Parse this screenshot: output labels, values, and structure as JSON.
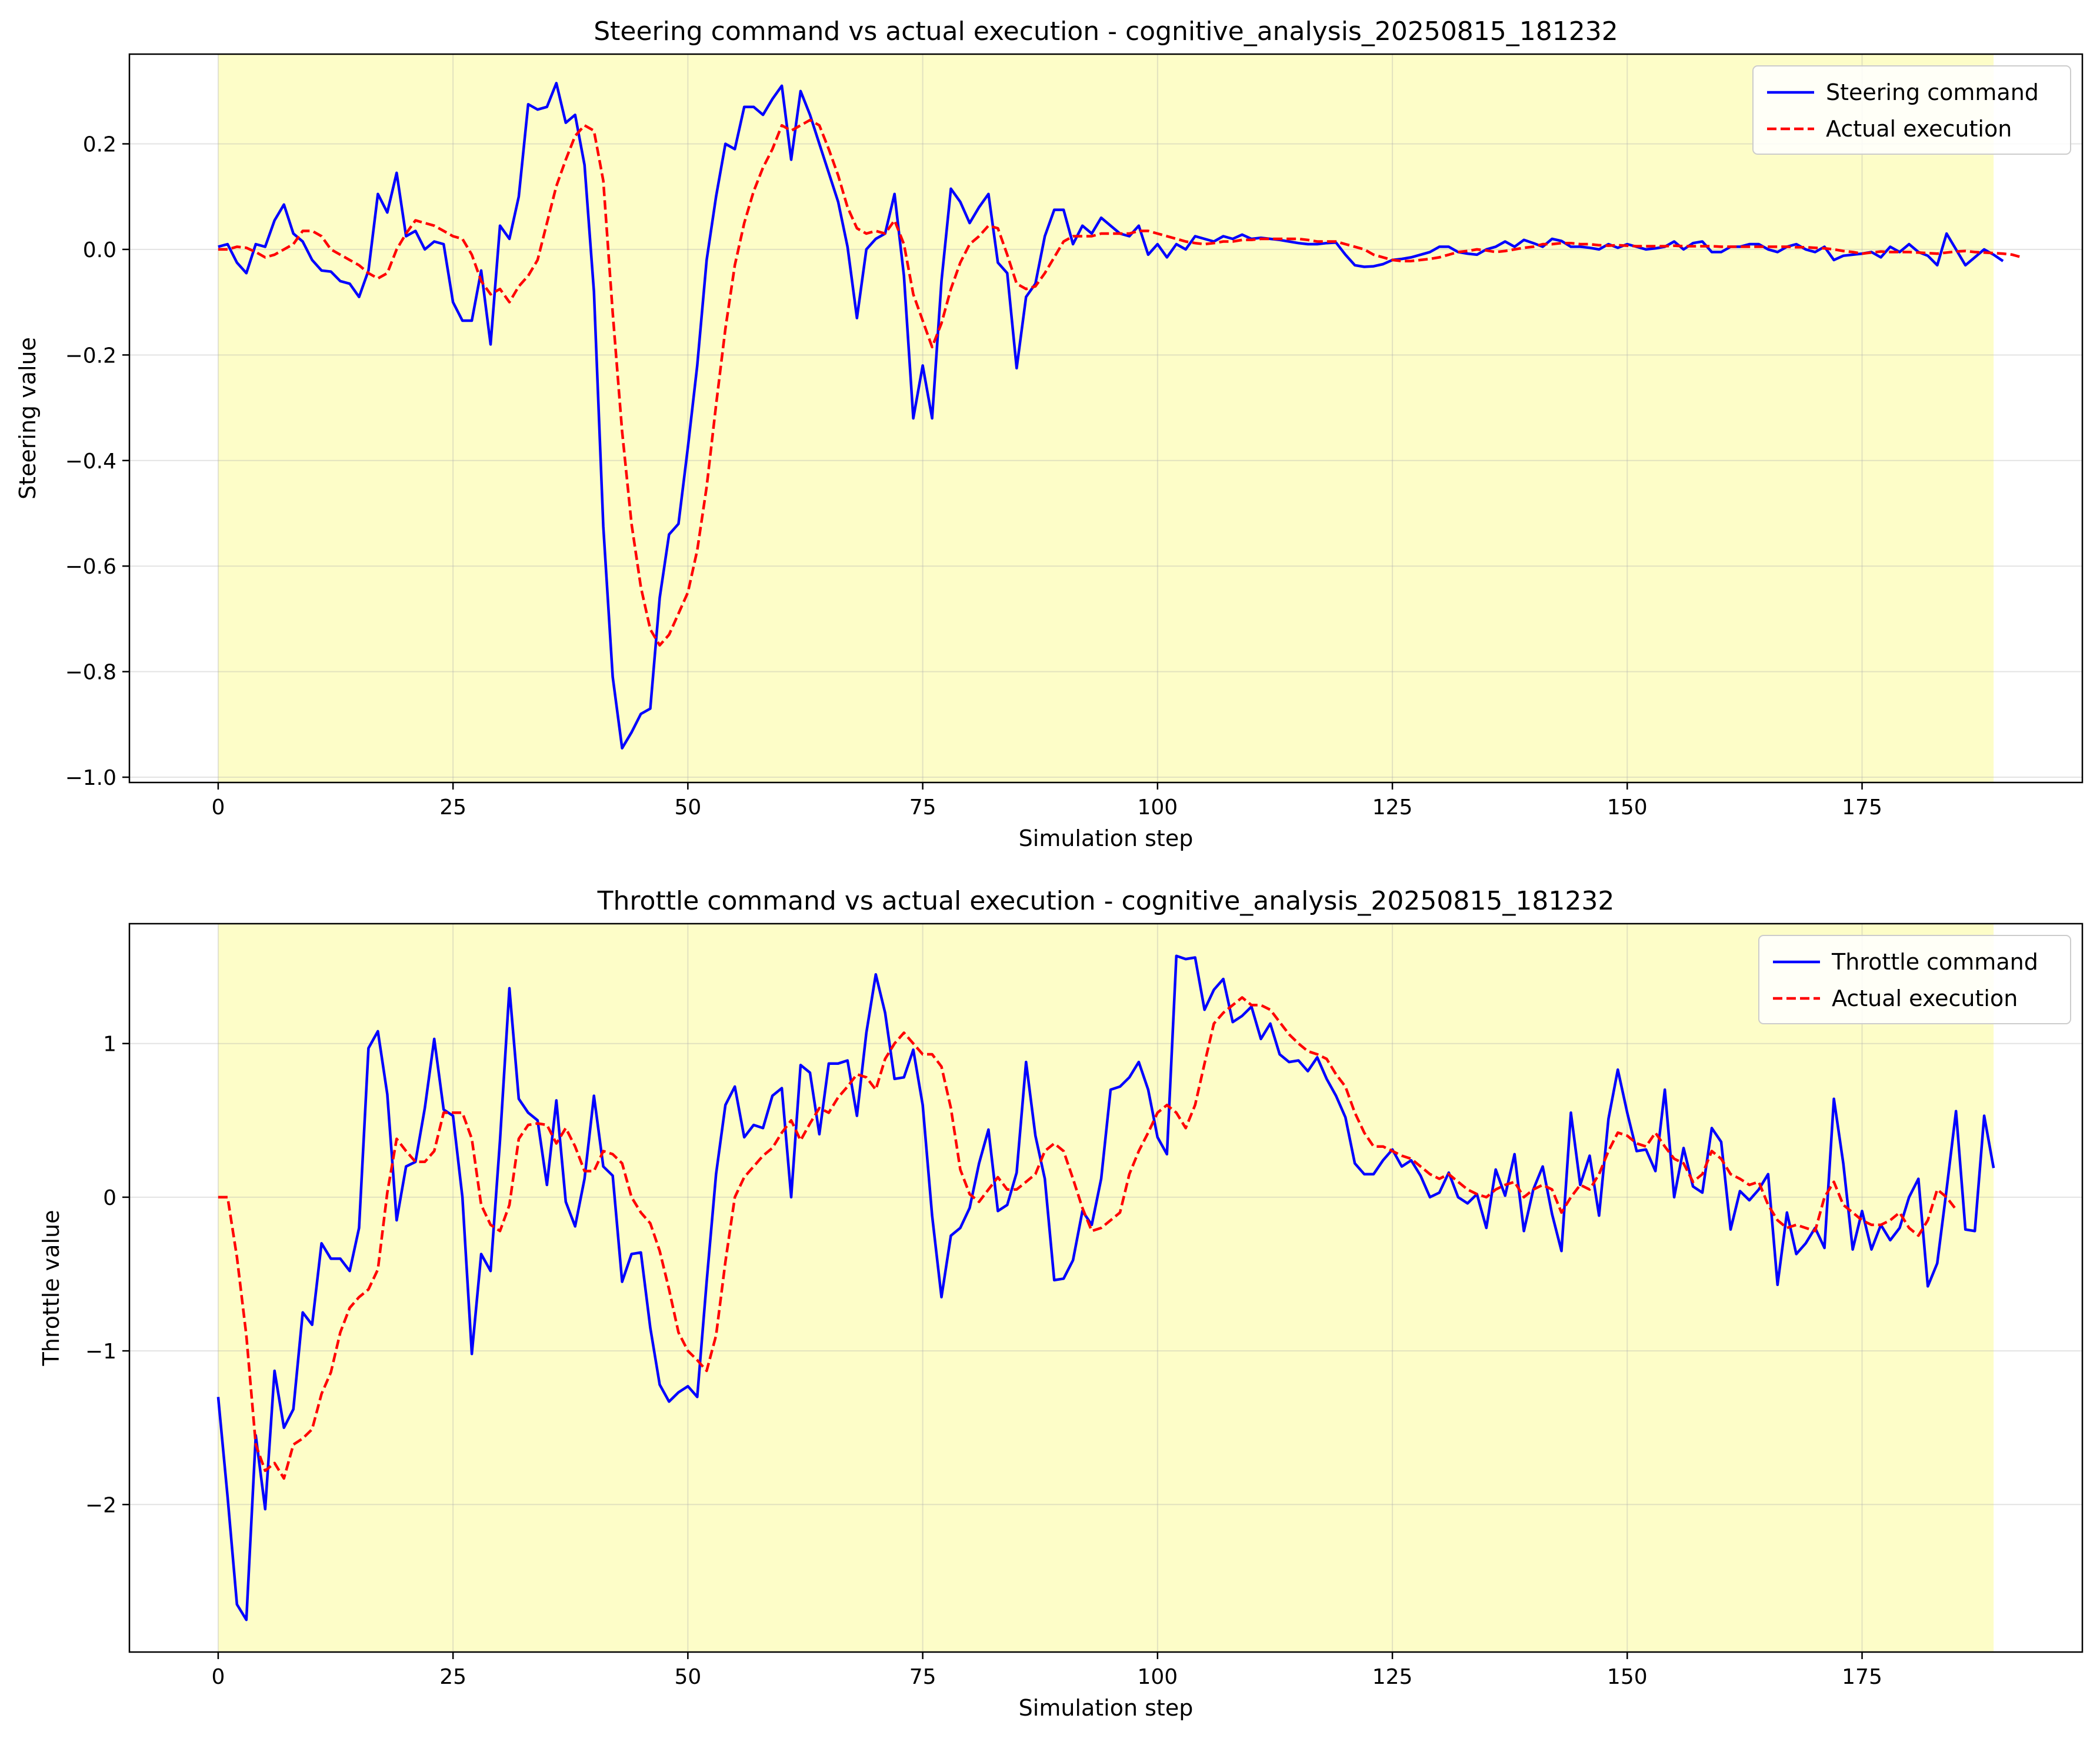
{
  "chart_data": [
    {
      "type": "line",
      "title": "Steering command vs actual execution - cognitive_analysis_20250815_181232",
      "xlabel": "Simulation step",
      "ylabel": "Steering value",
      "xlim": [
        -9.45,
        198.45
      ],
      "ylim": [
        -1.01,
        0.37
      ],
      "xticks": [
        0,
        25,
        50,
        75,
        100,
        125,
        150,
        175
      ],
      "yticks": [
        -1.0,
        -0.8,
        -0.6,
        -0.4,
        -0.2,
        0.0,
        0.2
      ],
      "ytick_labels": [
        "−1.0",
        "−0.8",
        "−0.6",
        "−0.4",
        "−0.2",
        "0.0",
        "0.2"
      ],
      "grid": true,
      "legend_position": "upper right",
      "highlight_span": {
        "x_start": 0,
        "x_end": 189,
        "color": "#fdfdc8"
      },
      "series": [
        {
          "name": "Steering command",
          "color": "#0000ff",
          "style": "solid",
          "x_start": 0,
          "values": [
            0.005,
            0.01,
            -0.025,
            -0.045,
            0.01,
            0.005,
            0.055,
            0.085,
            0.03,
            0.015,
            -0.02,
            -0.04,
            -0.042,
            -0.06,
            -0.065,
            -0.09,
            -0.04,
            0.105,
            0.07,
            0.145,
            0.025,
            0.035,
            0.0,
            0.015,
            0.01,
            -0.1,
            -0.135,
            -0.135,
            -0.04,
            -0.18,
            0.045,
            0.02,
            0.1,
            0.275,
            0.265,
            0.27,
            0.315,
            0.24,
            0.255,
            0.16,
            -0.08,
            -0.525,
            -0.81,
            -0.945,
            -0.915,
            -0.88,
            -0.87,
            -0.66,
            -0.54,
            -0.52,
            -0.375,
            -0.22,
            -0.02,
            0.1,
            0.2,
            0.19,
            0.27,
            0.27,
            0.255,
            0.285,
            0.31,
            0.17,
            0.3,
            0.255,
            0.2,
            0.145,
            0.09,
            0.005,
            -0.13,
            0.0,
            0.02,
            0.03,
            0.105,
            -0.05,
            -0.32,
            -0.22,
            -0.32,
            -0.06,
            0.115,
            0.09,
            0.05,
            0.08,
            0.105,
            -0.025,
            -0.045,
            -0.225,
            -0.09,
            -0.065,
            0.025,
            0.075,
            0.075,
            0.01,
            0.045,
            0.03,
            0.06,
            0.045,
            0.03,
            0.025,
            0.045,
            -0.01,
            0.01,
            -0.015,
            0.01,
            0.0,
            0.025,
            0.02,
            0.015,
            0.025,
            0.02,
            0.028,
            0.02,
            0.022,
            0.02,
            0.018,
            0.015,
            0.012,
            0.01,
            0.01,
            0.012,
            0.013,
            -0.01,
            -0.03,
            -0.033,
            -0.032,
            -0.028,
            -0.02,
            -0.018,
            -0.015,
            -0.01,
            -0.005,
            0.005,
            0.005,
            -0.005,
            -0.008,
            -0.01,
            0.0,
            0.005,
            0.015,
            0.005,
            0.018,
            0.012,
            0.005,
            0.02,
            0.016,
            0.005,
            0.005,
            0.003,
            0.0,
            0.01,
            0.003,
            0.01,
            0.005,
            0.0,
            0.002,
            0.005,
            0.015,
            0.0,
            0.012,
            0.015,
            -0.005,
            -0.005,
            0.005,
            0.005,
            0.01,
            0.01,
            0.0,
            -0.005,
            0.005,
            0.01,
            0.0,
            -0.005,
            0.005,
            -0.02,
            -0.012,
            -0.01,
            -0.008,
            -0.005,
            -0.015,
            0.005,
            -0.005,
            0.01,
            -0.005,
            -0.012,
            -0.03,
            0.03,
            0.0,
            -0.03,
            -0.015,
            0.0,
            -0.01,
            -0.022
          ]
        },
        {
          "name": "Actual execution",
          "color": "#ff0000",
          "style": "dashed",
          "x_start": 0,
          "values": [
            0.0,
            0.0,
            0.005,
            0.003,
            -0.005,
            -0.015,
            -0.01,
            0.0,
            0.01,
            0.035,
            0.035,
            0.025,
            0.0,
            -0.01,
            -0.02,
            -0.03,
            -0.045,
            -0.055,
            -0.045,
            0.0,
            0.03,
            0.055,
            0.05,
            0.045,
            0.035,
            0.025,
            0.02,
            -0.01,
            -0.06,
            -0.085,
            -0.075,
            -0.1,
            -0.07,
            -0.05,
            -0.02,
            0.05,
            0.12,
            0.17,
            0.215,
            0.235,
            0.225,
            0.13,
            -0.12,
            -0.345,
            -0.52,
            -0.64,
            -0.72,
            -0.75,
            -0.73,
            -0.69,
            -0.65,
            -0.57,
            -0.45,
            -0.295,
            -0.15,
            -0.03,
            0.05,
            0.11,
            0.155,
            0.19,
            0.235,
            0.225,
            0.235,
            0.245,
            0.235,
            0.19,
            0.14,
            0.08,
            0.04,
            0.03,
            0.035,
            0.03,
            0.055,
            0.01,
            -0.085,
            -0.135,
            -0.185,
            -0.14,
            -0.075,
            -0.025,
            0.01,
            0.025,
            0.045,
            0.04,
            -0.01,
            -0.065,
            -0.075,
            -0.07,
            -0.045,
            -0.015,
            0.015,
            0.025,
            0.025,
            0.025,
            0.03,
            0.03,
            0.03,
            0.03,
            0.035,
            0.035,
            0.03,
            0.025,
            0.02,
            0.015,
            0.012,
            0.01,
            0.012,
            0.015,
            0.015,
            0.018,
            0.018,
            0.02,
            0.02,
            0.02,
            0.02,
            0.02,
            0.018,
            0.015,
            0.015,
            0.015,
            0.01,
            0.005,
            0.0,
            -0.01,
            -0.015,
            -0.02,
            -0.022,
            -0.022,
            -0.02,
            -0.018,
            -0.015,
            -0.01,
            -0.005,
            -0.003,
            0.0,
            -0.002,
            -0.005,
            -0.003,
            0.0,
            0.003,
            0.005,
            0.01,
            0.01,
            0.012,
            0.012,
            0.01,
            0.01,
            0.008,
            0.007,
            0.008,
            0.007,
            0.006,
            0.006,
            0.006,
            0.006,
            0.007,
            0.006,
            0.006,
            0.006,
            0.006,
            0.005,
            0.005,
            0.005,
            0.005,
            0.005,
            0.005,
            0.005,
            0.005,
            0.004,
            0.004,
            0.003,
            0.002,
            0.0,
            -0.003,
            -0.005,
            -0.008,
            -0.006,
            -0.004,
            -0.005,
            -0.005,
            -0.005,
            -0.006,
            -0.007,
            -0.008,
            -0.006,
            -0.004,
            -0.003,
            -0.005,
            -0.006,
            -0.007,
            -0.008,
            -0.01,
            -0.015
          ]
        }
      ]
    },
    {
      "type": "line",
      "title": "Throttle command vs actual execution - cognitive_analysis_20250815_181232",
      "xlabel": "Simulation step",
      "ylabel": "Throttle value",
      "xlim": [
        -9.45,
        198.45
      ],
      "ylim": [
        -2.96,
        1.78
      ],
      "xticks": [
        0,
        25,
        50,
        75,
        100,
        125,
        150,
        175
      ],
      "yticks": [
        -2,
        -1,
        0,
        1
      ],
      "ytick_labels": [
        "−2",
        "−1",
        "0",
        "1"
      ],
      "grid": true,
      "legend_position": "upper right",
      "highlight_span": {
        "x_start": 0,
        "x_end": 189,
        "color": "#fdfdc8"
      },
      "series": [
        {
          "name": "Throttle command",
          "color": "#0000ff",
          "style": "solid",
          "x_start": 0,
          "values": [
            -1.3,
            -1.95,
            -2.65,
            -2.75,
            -1.55,
            -2.03,
            -1.13,
            -1.5,
            -1.38,
            -0.75,
            -0.83,
            -0.3,
            -0.4,
            -0.4,
            -0.48,
            -0.2,
            0.97,
            1.08,
            0.67,
            -0.15,
            0.2,
            0.23,
            0.58,
            1.03,
            0.57,
            0.53,
            0.0,
            -1.02,
            -0.37,
            -0.48,
            0.37,
            1.36,
            0.64,
            0.55,
            0.5,
            0.08,
            0.63,
            -0.03,
            -0.19,
            0.12,
            0.66,
            0.2,
            0.14,
            -0.55,
            -0.37,
            -0.36,
            -0.85,
            -1.22,
            -1.33,
            -1.27,
            -1.23,
            -1.3,
            -0.55,
            0.15,
            0.6,
            0.72,
            0.39,
            0.47,
            0.45,
            0.66,
            0.71,
            0.0,
            0.86,
            0.81,
            0.41,
            0.87,
            0.87,
            0.89,
            0.53,
            1.07,
            1.45,
            1.2,
            0.77,
            0.78,
            0.96,
            0.6,
            -0.12,
            -0.65,
            -0.25,
            -0.2,
            -0.07,
            0.22,
            0.44,
            -0.09,
            -0.05,
            0.16,
            0.88,
            0.4,
            0.12,
            -0.54,
            -0.53,
            -0.41,
            -0.09,
            -0.18,
            0.12,
            0.7,
            0.72,
            0.78,
            0.88,
            0.7,
            0.39,
            0.28,
            1.57,
            1.55,
            1.56,
            1.22,
            1.35,
            1.42,
            1.14,
            1.18,
            1.24,
            1.03,
            1.13,
            0.93,
            0.88,
            0.89,
            0.82,
            0.91,
            0.77,
            0.66,
            0.52,
            0.22,
            0.15,
            0.15,
            0.24,
            0.31,
            0.2,
            0.24,
            0.14,
            0.0,
            0.03,
            0.16,
            0.0,
            -0.04,
            0.02,
            -0.2,
            0.18,
            0.01,
            0.28,
            -0.22,
            0.05,
            0.2,
            -0.11,
            -0.35,
            0.55,
            0.08,
            0.27,
            -0.12,
            0.51,
            0.83,
            0.55,
            0.3,
            0.31,
            0.17,
            0.7,
            0.0,
            0.32,
            0.07,
            0.03,
            0.45,
            0.36,
            -0.21,
            0.04,
            -0.02,
            0.05,
            0.15,
            -0.57,
            -0.1,
            -0.37,
            -0.3,
            -0.2,
            -0.33,
            0.64,
            0.22,
            -0.34,
            -0.09,
            -0.34,
            -0.18,
            -0.28,
            -0.2,
            0.0,
            0.12,
            -0.58,
            -0.43,
            0.05,
            0.56,
            -0.21,
            -0.22,
            0.53,
            0.19
          ]
        },
        {
          "name": "Actual execution",
          "color": "#ff0000",
          "style": "dashed",
          "x_start": 0,
          "values": [
            0.0,
            0.0,
            -0.39,
            -0.9,
            -1.61,
            -1.78,
            -1.73,
            -1.83,
            -1.61,
            -1.57,
            -1.51,
            -1.28,
            -1.14,
            -0.88,
            -0.72,
            -0.65,
            -0.6,
            -0.47,
            0.03,
            0.38,
            0.3,
            0.23,
            0.23,
            0.3,
            0.55,
            0.55,
            0.55,
            0.38,
            -0.05,
            -0.18,
            -0.22,
            -0.05,
            0.38,
            0.47,
            0.48,
            0.47,
            0.35,
            0.45,
            0.33,
            0.17,
            0.17,
            0.3,
            0.28,
            0.22,
            0.0,
            -0.1,
            -0.17,
            -0.35,
            -0.6,
            -0.88,
            -1.0,
            -1.06,
            -1.13,
            -0.9,
            -0.42,
            0.0,
            0.13,
            0.2,
            0.27,
            0.32,
            0.42,
            0.5,
            0.37,
            0.48,
            0.58,
            0.55,
            0.65,
            0.72,
            0.8,
            0.78,
            0.7,
            0.9,
            1.0,
            1.07,
            1.0,
            0.93,
            0.93,
            0.85,
            0.58,
            0.18,
            0.02,
            -0.03,
            0.05,
            0.13,
            0.05,
            0.05,
            0.1,
            0.15,
            0.3,
            0.35,
            0.3,
            0.12,
            -0.07,
            -0.22,
            -0.2,
            -0.15,
            -0.1,
            0.15,
            0.3,
            0.42,
            0.55,
            0.6,
            0.55,
            0.45,
            0.6,
            0.87,
            1.13,
            1.2,
            1.25,
            1.3,
            1.25,
            1.25,
            1.22,
            1.14,
            1.06,
            1.0,
            0.95,
            0.93,
            0.9,
            0.8,
            0.72,
            0.55,
            0.42,
            0.33,
            0.33,
            0.3,
            0.27,
            0.25,
            0.2,
            0.15,
            0.12,
            0.15,
            0.1,
            0.05,
            0.02,
            0.0,
            0.05,
            0.08,
            0.1,
            0.0,
            0.05,
            0.08,
            0.05,
            -0.1,
            0.0,
            0.08,
            0.05,
            0.15,
            0.3,
            0.42,
            0.4,
            0.35,
            0.33,
            0.42,
            0.33,
            0.25,
            0.22,
            0.1,
            0.15,
            0.3,
            0.25,
            0.15,
            0.12,
            0.08,
            0.1,
            -0.05,
            -0.15,
            -0.2,
            -0.18,
            -0.2,
            -0.22,
            0.0,
            0.1,
            -0.05,
            -0.1,
            -0.15,
            -0.18,
            -0.18,
            -0.15,
            -0.1,
            -0.2,
            -0.25,
            -0.15,
            0.05,
            0.0,
            -0.08
          ]
        }
      ]
    }
  ]
}
